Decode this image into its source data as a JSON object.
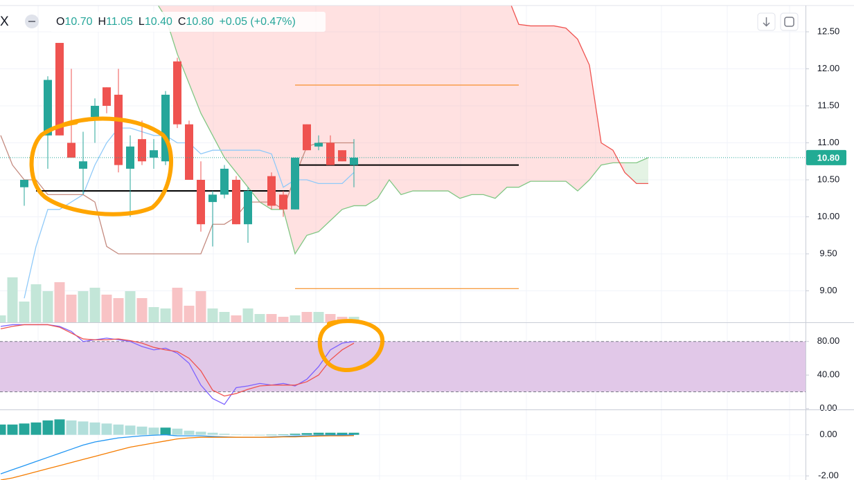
{
  "chart_data": [
    {
      "type": "candlestick",
      "header": {
        "symbol": "X",
        "open_label": "O",
        "open": "10.70",
        "high_label": "H",
        "high": "11.05",
        "low_label": "L",
        "low": "10.40",
        "close_label": "C",
        "close": "10.80",
        "change": "+0.05 (+0.47%)"
      },
      "open": [
        null,
        null,
        10.4,
        null,
        11.1,
        12.35,
        11.0,
        10.65,
        11.35,
        11.75,
        11.65,
        10.65,
        11.05,
        10.8,
        10.75,
        12.1,
        11.25,
        10.5,
        10.2,
        10.3,
        10.5,
        9.9,
        null,
        10.55,
        10.3,
        10.1,
        11.25,
        10.95,
        11.0,
        10.9,
        10.7
      ],
      "high": [
        null,
        null,
        10.5,
        null,
        11.9,
        12.35,
        12.0,
        11.15,
        11.6,
        11.75,
        12.0,
        11.1,
        11.3,
        11.05,
        11.7,
        12.15,
        11.3,
        10.75,
        10.35,
        10.7,
        10.55,
        10.4,
        null,
        10.6,
        10.35,
        10.8,
        11.25,
        11.1,
        11.1,
        10.9,
        11.05
      ],
      "low": [
        null,
        null,
        10.15,
        null,
        10.65,
        11.1,
        10.8,
        10.3,
        11.0,
        11.4,
        10.6,
        10.0,
        10.7,
        10.65,
        10.7,
        11.2,
        10.5,
        9.8,
        9.6,
        10.25,
        9.9,
        9.65,
        null,
        10.1,
        10.0,
        10.1,
        10.9,
        10.9,
        10.7,
        10.75,
        10.4
      ],
      "close": [
        null,
        null,
        10.5,
        null,
        11.85,
        11.1,
        10.8,
        10.75,
        11.5,
        11.5,
        10.7,
        10.95,
        10.75,
        10.9,
        11.65,
        11.25,
        10.5,
        9.9,
        10.3,
        10.65,
        9.9,
        10.35,
        null,
        10.15,
        10.1,
        10.8,
        10.9,
        11.0,
        10.7,
        10.75,
        10.8
      ],
      "volume": [
        10,
        65,
        30,
        55,
        45,
        58,
        40,
        45,
        50,
        40,
        35,
        45,
        35,
        22,
        20,
        50,
        24,
        45,
        20,
        15,
        10,
        20,
        12,
        12,
        8,
        10,
        15,
        15,
        12,
        8,
        8
      ],
      "colors": {
        "up": "#26a69a",
        "down": "#ef5350",
        "up_volume": "#c3e6d8",
        "down_volume": "#f8c3c5"
      },
      "ylim": [
        8.575,
        12.855
      ],
      "yticks": [
        {
          "value": 12.5,
          "label": "12.50"
        },
        {
          "value": 12,
          "label": "12.00"
        },
        {
          "value": 11.5,
          "label": "11.50"
        },
        {
          "value": 11,
          "label": "11.00"
        },
        {
          "value": 10.5,
          "label": "10.50"
        },
        {
          "value": 10,
          "label": "10.00"
        },
        {
          "value": 9.5,
          "label": "9.50"
        },
        {
          "value": 9,
          "label": "9.00"
        }
      ],
      "last_price": {
        "value": 10.8,
        "label": "10.80"
      },
      "levels": [
        {
          "value": 10.35,
          "color": "#000000",
          "x": [
            3,
            24.5
          ]
        },
        {
          "value": 10.7,
          "color": "#000000",
          "x": [
            25,
            44
          ]
        },
        {
          "value": 11.78,
          "color": "#f57c00",
          "x": [
            25,
            44
          ]
        },
        {
          "value": 9.03,
          "color": "#f57c00",
          "x": [
            25,
            44
          ]
        }
      ],
      "lines": [
        {
          "color": "#90caf9",
          "values": [
            null,
            null,
            8.9,
            9.6,
            10.1,
            10.1,
            10.2,
            10.3,
            10.7,
            11.0,
            11.2,
            11.2,
            11.15,
            11.1,
            11.1,
            11.0,
            11.0,
            10.85,
            10.9,
            10.9,
            10.9,
            10.9,
            10.9,
            10.85,
            10.4,
            10.5,
            10.5,
            10.45,
            10.45,
            10.45,
            10.6
          ]
        },
        {
          "color": "#c48a7f",
          "values": [
            11.1,
            10.7,
            10.5,
            10.5,
            10.3,
            10.3,
            10.3,
            10.3,
            10.2,
            9.6,
            9.5,
            9.5,
            9.5,
            9.5,
            9.5,
            9.5,
            9.5,
            9.5,
            9.9,
            9.9,
            10.0,
            10.2,
            10.2,
            10.2,
            10.1,
            10.55,
            10.95,
            11.0,
            11.0,
            11.0,
            11.0
          ]
        }
      ],
      "cloud": {
        "colors": {
          "a": "#81c784",
          "b": "#ef5350",
          "a_fill": "rgba(165,214,167,0.3)",
          "b_fill": "rgba(255,180,180,0.4)"
        },
        "a": [
          null,
          null,
          null,
          null,
          null,
          null,
          null,
          null,
          null,
          null,
          null,
          null,
          null,
          12.95,
          12.7,
          12.2,
          11.8,
          11.4,
          11.1,
          10.8,
          10.6,
          10.4,
          10.2,
          10.1,
          10.1,
          9.5,
          9.75,
          9.8,
          9.95,
          10.1,
          10.15,
          10.15,
          10.25,
          10.5,
          10.3,
          10.35,
          10.35,
          10.35,
          10.35,
          10.25,
          10.3,
          10.3,
          10.25,
          10.4,
          10.4,
          10.48,
          10.48,
          10.48,
          10.48,
          10.35,
          10.5,
          10.7,
          10.73,
          10.73,
          10.73,
          10.8
        ],
        "b": [
          null,
          null,
          null,
          null,
          null,
          null,
          null,
          null,
          null,
          null,
          null,
          null,
          null,
          13.0,
          13.0,
          13.0,
          13.0,
          13.0,
          13.0,
          13.0,
          13.0,
          13.0,
          13.0,
          13.0,
          13.0,
          13.0,
          13.0,
          13.0,
          13.0,
          13.0,
          13.0,
          13.0,
          13.0,
          13.0,
          13.0,
          13.0,
          13.0,
          13.0,
          13.0,
          13.0,
          13.0,
          13.0,
          13.0,
          13.0,
          12.6,
          12.58,
          12.58,
          12.58,
          12.55,
          12.4,
          12.05,
          11.0,
          10.9,
          10.6,
          10.45,
          10.45
        ]
      }
    },
    {
      "type": "stochastic",
      "series": [
        {
          "color": "#7b61ff",
          "values": [
            98,
            100,
            100,
            100,
            100,
            98,
            92,
            80,
            82,
            84,
            82,
            80,
            74,
            70,
            72,
            66,
            54,
            28,
            12,
            5,
            25,
            27,
            30,
            28,
            30,
            27,
            35,
            50,
            70,
            78,
            80
          ]
        },
        {
          "color": "#ef5350",
          "values": [
            95,
            98,
            100,
            100,
            100,
            97,
            90,
            83,
            82,
            82,
            83,
            81,
            78,
            73,
            70,
            68,
            60,
            45,
            22,
            15,
            18,
            23,
            27,
            28,
            28,
            28,
            32,
            40,
            58,
            70,
            78
          ]
        }
      ],
      "band": [
        20,
        80
      ],
      "band_color": "#e1c8e8",
      "ylim": [
        -1,
        102
      ],
      "yticks": [
        {
          "value": 80,
          "label": "80.00"
        },
        {
          "value": 40,
          "label": "40.00"
        },
        {
          "value": 0,
          "label": "0.00"
        }
      ]
    },
    {
      "type": "macd",
      "histogram": [
        0.5,
        0.5,
        0.55,
        0.6,
        0.7,
        0.75,
        0.7,
        0.65,
        0.6,
        0.55,
        0.5,
        0.45,
        0.4,
        0.35,
        0.35,
        0.3,
        0.2,
        0.15,
        0.1,
        0.05,
        0.02,
        -0.02,
        -0.03,
        -0.02,
        0.02,
        0.05,
        0.08,
        0.1,
        0.1,
        0.1,
        0.1
      ],
      "histogram_colors": {
        "rising": "#26a69a",
        "falling": "#b2dfdb"
      },
      "series": [
        {
          "color": "#2196f3",
          "values": [
            -1.9,
            -1.7,
            -1.5,
            -1.3,
            -1.1,
            -0.9,
            -0.7,
            -0.5,
            -0.35,
            -0.25,
            -0.15,
            -0.1,
            -0.05,
            -0.02,
            0,
            -0.05,
            -0.05,
            -0.05,
            -0.08,
            -0.1,
            -0.12,
            -0.12,
            -0.12,
            -0.1,
            -0.08,
            -0.06,
            -0.05,
            -0.03,
            -0.02,
            -0.01,
            0
          ]
        },
        {
          "color": "#f57c00",
          "values": [
            -2.2,
            -2.1,
            -1.95,
            -1.8,
            -1.65,
            -1.5,
            -1.35,
            -1.2,
            -1.05,
            -0.9,
            -0.75,
            -0.6,
            -0.5,
            -0.4,
            -0.3,
            -0.2,
            -0.15,
            -0.12,
            -0.12,
            -0.12,
            -0.12,
            -0.12,
            -0.12,
            -0.12,
            -0.1,
            -0.1,
            -0.08,
            -0.06,
            -0.05,
            -0.05,
            -0.04
          ]
        }
      ],
      "ylim": [
        -2.2,
        1.2
      ],
      "yticks": [
        {
          "value": 0,
          "label": "0.00"
        },
        {
          "value": -2,
          "label": "-2.00"
        }
      ]
    }
  ]
}
